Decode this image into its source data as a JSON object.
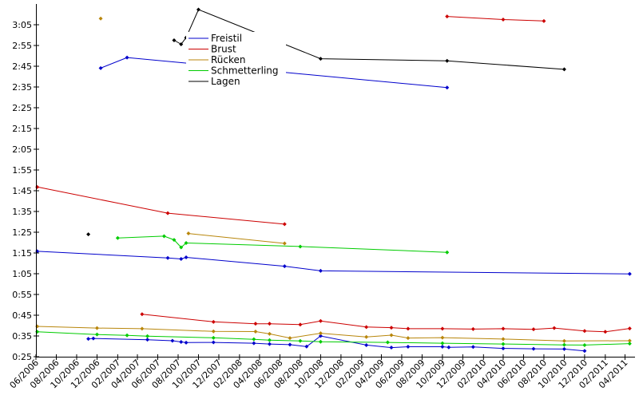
{
  "chart_data": {
    "type": "line",
    "title": "",
    "xlabel": "",
    "ylabel": "",
    "x_axis": {
      "type": "date",
      "range": [
        "2006-06-01",
        "2011-05-01"
      ],
      "ticks": [
        {
          "date": "2006-06-01",
          "label": "06/2006"
        },
        {
          "date": "2006-08-01",
          "label": "08/2006"
        },
        {
          "date": "2006-10-01",
          "label": "10/2006"
        },
        {
          "date": "2006-12-01",
          "label": "12/2006"
        },
        {
          "date": "2007-02-01",
          "label": "02/2007"
        },
        {
          "date": "2007-04-01",
          "label": "04/2007"
        },
        {
          "date": "2007-06-01",
          "label": "06/2007"
        },
        {
          "date": "2007-08-01",
          "label": "08/2007"
        },
        {
          "date": "2007-10-01",
          "label": "10/2007"
        },
        {
          "date": "2007-12-01",
          "label": "12/2007"
        },
        {
          "date": "2008-02-01",
          "label": "02/2008"
        },
        {
          "date": "2008-04-01",
          "label": "04/2008"
        },
        {
          "date": "2008-06-01",
          "label": "06/2008"
        },
        {
          "date": "2008-08-01",
          "label": "08/2008"
        },
        {
          "date": "2008-10-01",
          "label": "10/2008"
        },
        {
          "date": "2008-12-01",
          "label": "12/2008"
        },
        {
          "date": "2009-02-01",
          "label": "02/2009"
        },
        {
          "date": "2009-04-01",
          "label": "04/2009"
        },
        {
          "date": "2009-06-01",
          "label": "06/2009"
        },
        {
          "date": "2009-08-01",
          "label": "08/2009"
        },
        {
          "date": "2009-10-01",
          "label": "10/2009"
        },
        {
          "date": "2009-12-01",
          "label": "12/2009"
        },
        {
          "date": "2010-02-01",
          "label": "02/2010"
        },
        {
          "date": "2010-04-01",
          "label": "04/2010"
        },
        {
          "date": "2010-06-01",
          "label": "06/2010"
        },
        {
          "date": "2010-08-01",
          "label": "08/2010"
        },
        {
          "date": "2010-10-01",
          "label": "10/2010"
        },
        {
          "date": "2010-12-01",
          "label": "12/2010"
        },
        {
          "date": "2011-02-01",
          "label": "02/2011"
        },
        {
          "date": "2011-04-01",
          "label": "04/2011"
        }
      ]
    },
    "y_axis": {
      "unit": "seconds",
      "range": [
        25,
        195
      ],
      "ticks": [
        {
          "value": 25,
          "label": "0:25"
        },
        {
          "value": 35,
          "label": "0:35"
        },
        {
          "value": 45,
          "label": "0:45"
        },
        {
          "value": 55,
          "label": "0:55"
        },
        {
          "value": 65,
          "label": "1:05"
        },
        {
          "value": 75,
          "label": "1:15"
        },
        {
          "value": 85,
          "label": "1:25"
        },
        {
          "value": 95,
          "label": "1:35"
        },
        {
          "value": 105,
          "label": "1:45"
        },
        {
          "value": 115,
          "label": "1:55"
        },
        {
          "value": 125,
          "label": "2:05"
        },
        {
          "value": 135,
          "label": "2:15"
        },
        {
          "value": 145,
          "label": "2:25"
        },
        {
          "value": 155,
          "label": "2:35"
        },
        {
          "value": 165,
          "label": "2:45"
        },
        {
          "value": 175,
          "label": "2:55"
        },
        {
          "value": 185,
          "label": "3:05"
        }
      ]
    },
    "grid": false,
    "legend_position": "top-center",
    "series": [
      {
        "name": "Freistil",
        "color": "#0000cc",
        "lines": [
          [
            [
              "2006-12-12",
              164.1
            ],
            [
              "2007-03-01",
              169.2
            ],
            [
              "2009-10-15",
              154.7
            ]
          ],
          [
            [
              "2006-06-05",
              75.8
            ],
            [
              "2007-07-01",
              72.6
            ],
            [
              "2007-08-10",
              72.1
            ],
            [
              "2007-08-25",
              72.9
            ],
            [
              "2008-06-15",
              68.6
            ],
            [
              "2008-10-01",
              66.4
            ],
            [
              "2011-04-15",
              64.9
            ]
          ],
          [
            [
              "2006-11-05",
              33.6
            ],
            [
              "2006-11-20",
              33.8
            ],
            [
              "2007-05-01",
              33.2
            ],
            [
              "2007-07-15",
              32.7
            ],
            [
              "2007-08-10",
              32.1
            ],
            [
              "2007-08-25",
              31.8
            ],
            [
              "2007-11-15",
              31.9
            ],
            [
              "2008-03-15",
              31.5
            ],
            [
              "2008-05-01",
              31.1
            ],
            [
              "2008-07-01",
              30.8
            ],
            [
              "2008-08-20",
              29.9
            ],
            [
              "2008-10-01",
              35.0
            ],
            [
              "2009-02-15",
              30.6
            ],
            [
              "2009-05-01",
              29.4
            ],
            [
              "2009-06-20",
              29.8
            ],
            [
              "2009-10-01",
              29.8
            ],
            [
              "2009-10-20",
              29.5
            ],
            [
              "2010-01-01",
              29.7
            ],
            [
              "2010-04-01",
              29.0
            ],
            [
              "2010-07-01",
              28.8
            ],
            [
              "2010-10-01",
              28.7
            ],
            [
              "2010-12-01",
              27.8
            ]
          ]
        ]
      },
      {
        "name": "Brust",
        "color": "#cc0000",
        "lines": [
          [
            [
              "2009-10-15",
              189.0
            ],
            [
              "2010-04-01",
              187.5
            ],
            [
              "2010-08-01",
              186.8
            ]
          ],
          [
            [
              "2006-06-05",
              106.8
            ],
            [
              "2007-07-01",
              94.2
            ],
            [
              "2008-06-15",
              88.9
            ]
          ],
          [
            [
              "2007-04-15",
              45.5
            ],
            [
              "2007-11-15",
              41.8
            ],
            [
              "2008-03-20",
              40.9
            ],
            [
              "2008-05-01",
              40.9
            ],
            [
              "2008-08-01",
              40.5
            ],
            [
              "2008-10-01",
              42.2
            ],
            [
              "2009-02-15",
              39.3
            ],
            [
              "2009-05-01",
              39.0
            ],
            [
              "2009-06-20",
              38.5
            ],
            [
              "2009-10-01",
              38.5
            ],
            [
              "2010-01-01",
              38.3
            ],
            [
              "2010-04-01",
              38.5
            ],
            [
              "2010-07-01",
              38.2
            ],
            [
              "2010-09-01",
              38.8
            ],
            [
              "2010-12-01",
              37.4
            ],
            [
              "2011-02-01",
              37.0
            ],
            [
              "2011-04-15",
              38.6
            ]
          ]
        ]
      },
      {
        "name": "Rücken",
        "color": "#b8860b",
        "lines": [
          [
            [
              "2006-12-12",
              188.0
            ]
          ],
          [
            [
              "2007-09-01",
              84.4
            ],
            [
              "2008-06-15",
              79.6
            ]
          ],
          [
            [
              "2006-06-05",
              39.6
            ],
            [
              "2006-12-01",
              38.8
            ],
            [
              "2007-04-15",
              38.5
            ],
            [
              "2007-11-15",
              37.2
            ],
            [
              "2008-03-20",
              37.1
            ],
            [
              "2008-05-01",
              36.0
            ],
            [
              "2008-07-01",
              34.0
            ],
            [
              "2008-10-01",
              36.3
            ],
            [
              "2009-02-15",
              34.5
            ],
            [
              "2009-05-01",
              35.4
            ],
            [
              "2009-06-20",
              34.0
            ],
            [
              "2009-10-01",
              34.2
            ],
            [
              "2010-04-01",
              33.5
            ],
            [
              "2010-10-01",
              32.6
            ],
            [
              "2011-04-15",
              32.7
            ]
          ]
        ]
      },
      {
        "name": "Schmetterling",
        "color": "#00cc00",
        "lines": [
          [
            [
              "2007-02-01",
              82.2
            ],
            [
              "2007-06-20",
              83.1
            ],
            [
              "2007-07-20",
              81.3
            ],
            [
              "2007-08-10",
              77.7
            ],
            [
              "2007-08-25",
              79.8
            ],
            [
              "2008-08-01",
              78.1
            ],
            [
              "2009-10-15",
              75.3
            ]
          ],
          [
            [
              "2006-06-05",
              37.0
            ],
            [
              "2006-12-01",
              35.7
            ],
            [
              "2007-03-01",
              35.3
            ],
            [
              "2007-05-01",
              34.9
            ],
            [
              "2007-11-15",
              34.1
            ],
            [
              "2008-03-15",
              33.4
            ],
            [
              "2008-05-01",
              33.0
            ],
            [
              "2008-08-01",
              32.6
            ],
            [
              "2008-10-01",
              32.2
            ],
            [
              "2009-04-20",
              31.9
            ],
            [
              "2009-10-01",
              31.5
            ],
            [
              "2010-04-01",
              31.1
            ],
            [
              "2010-10-01",
              30.7
            ],
            [
              "2010-12-01",
              30.6
            ],
            [
              "2011-04-15",
              31.3
            ]
          ]
        ]
      },
      {
        "name": "Lagen",
        "color": "#000000",
        "lines": [
          [
            [
              "2007-07-20",
              177.5
            ],
            [
              "2007-08-10",
              175.6
            ],
            [
              "2007-08-25",
              178.8
            ],
            [
              "2007-10-01",
              192.3
            ],
            [
              "2008-10-01",
              168.6
            ],
            [
              "2009-10-15",
              167.6
            ],
            [
              "2010-10-01",
              163.5
            ]
          ],
          [
            [
              "2006-11-05",
              84.0
            ]
          ]
        ]
      }
    ]
  }
}
